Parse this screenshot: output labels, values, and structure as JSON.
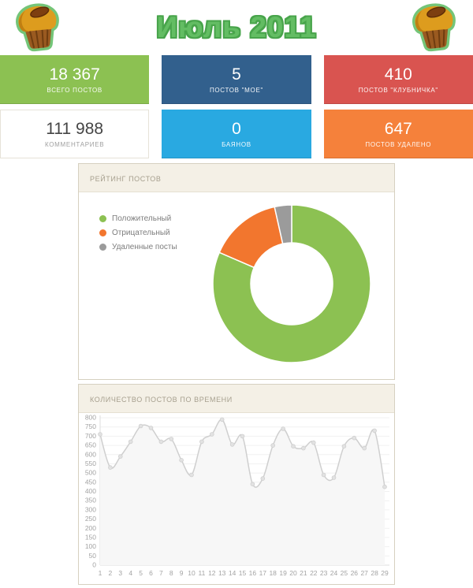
{
  "header": {
    "title": "Июль 2011",
    "icon": "muffin-icon"
  },
  "cards": [
    {
      "value": "18 367",
      "label": "ВСЕГО ПОСТОВ",
      "bg": "#8cc152",
      "fg": "#ffffff"
    },
    {
      "value": "5",
      "label": "ПОСТОВ \"МОЕ\"",
      "bg": "#32608d",
      "fg": "#ffffff"
    },
    {
      "value": "410",
      "label": "ПОСТОВ \"КЛУБНИЧКА\"",
      "bg": "#d95450",
      "fg": "#ffffff"
    },
    {
      "value": "111 988",
      "label": "КОММЕНТАРИЕВ",
      "bg": "#ffffff",
      "fg": "#454545"
    },
    {
      "value": "0",
      "label": "БАЯНОВ",
      "bg": "#29a9e1",
      "fg": "#ffffff"
    },
    {
      "value": "647",
      "label": "ПОСТОВ УДАЛЕНО",
      "bg": "#f5813b",
      "fg": "#ffffff"
    }
  ],
  "panels": {
    "rating_title": "РЕЙТИНГ ПОСТОВ",
    "timeline_title": "КОЛИЧЕСТВО ПОСТОВ ПО ВРЕМЕНИ"
  },
  "chart_data": [
    {
      "type": "pie",
      "title": "РЕЙТИНГ ПОСТОВ",
      "donut": true,
      "legend_position": "left",
      "slices": [
        {
          "label": "Положительный",
          "percent": 81.5,
          "color": "#8cc152"
        },
        {
          "label": "Отрицательный",
          "percent": 15.0,
          "color": "#f2762e"
        },
        {
          "label": "Удаленные посты",
          "percent": 3.5,
          "color": "#9b9b9b"
        }
      ]
    },
    {
      "type": "line",
      "title": "КОЛИЧЕСТВО ПОСТОВ ПО ВРЕМЕНИ",
      "x": [
        1,
        2,
        3,
        4,
        5,
        6,
        7,
        8,
        9,
        10,
        11,
        12,
        13,
        14,
        15,
        16,
        17,
        18,
        19,
        20,
        21,
        22,
        23,
        24,
        25,
        26,
        27,
        28,
        29
      ],
      "values": [
        710,
        530,
        590,
        670,
        755,
        745,
        670,
        685,
        570,
        490,
        670,
        710,
        790,
        655,
        700,
        440,
        470,
        650,
        740,
        645,
        635,
        665,
        490,
        475,
        645,
        690,
        635,
        730,
        425
      ],
      "xlabel": "",
      "ylabel": "",
      "ylim": [
        0,
        800
      ],
      "ytick_step": 50,
      "grid": true,
      "legend_position": "none",
      "colors": {
        "line": "#cfcfcf",
        "area": "#f7f7f7",
        "point": "#e2e2e2",
        "grid": "#f1f1f1",
        "axis": "#dddddd",
        "tick_text": "#a3a3a3"
      }
    }
  ]
}
